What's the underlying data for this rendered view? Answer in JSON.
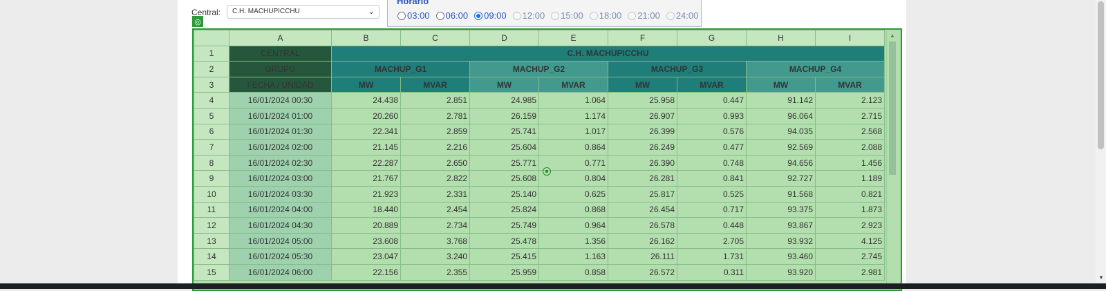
{
  "form": {
    "central_label": "Central:",
    "central_value": "C.H. MACHUPICCHU",
    "horario_legend": "Horario",
    "hours": [
      {
        "label": "03:00",
        "checked": false,
        "disabled": false
      },
      {
        "label": "06:00",
        "checked": false,
        "disabled": false
      },
      {
        "label": "09:00",
        "checked": true,
        "disabled": false
      },
      {
        "label": "12:00",
        "checked": false,
        "disabled": true
      },
      {
        "label": "15:00",
        "checked": false,
        "disabled": true
      },
      {
        "label": "18:00",
        "checked": false,
        "disabled": true
      },
      {
        "label": "21:00",
        "checked": false,
        "disabled": true
      },
      {
        "label": "24:00",
        "checked": false,
        "disabled": true
      }
    ]
  },
  "sheet": {
    "columns": [
      "A",
      "B",
      "C",
      "D",
      "E",
      "F",
      "G",
      "H",
      "I"
    ],
    "central_label": "CENTRAL",
    "central_name": "C.H. MACHUPICCHU",
    "grupo_label": "GRUPO",
    "groups": [
      "MACHUP_G1",
      "MACHUP_G2",
      "MACHUP_G3",
      "MACHUP_G4"
    ],
    "fecha_label": "FECHA / UNIDAD",
    "units": [
      "MW",
      "MVAR",
      "MW",
      "MVAR",
      "MW",
      "MVAR",
      "MW",
      "MVAR"
    ],
    "rows": [
      {
        "n": "4",
        "date": "16/01/2024 00:30",
        "vals": [
          "24.438",
          "2.851",
          "24.985",
          "1.064",
          "25.958",
          "0.447",
          "91.142",
          "2.123"
        ]
      },
      {
        "n": "5",
        "date": "16/01/2024 01:00",
        "vals": [
          "20.260",
          "2.781",
          "26.159",
          "1.174",
          "26.907",
          "0.993",
          "96.064",
          "2.715"
        ]
      },
      {
        "n": "6",
        "date": "16/01/2024 01:30",
        "vals": [
          "22.341",
          "2.859",
          "25.741",
          "1.017",
          "26.399",
          "0.576",
          "94.035",
          "2.568"
        ]
      },
      {
        "n": "7",
        "date": "16/01/2024 02:00",
        "vals": [
          "21.145",
          "2.216",
          "25.604",
          "0.864",
          "26.249",
          "0.477",
          "92.569",
          "2.088"
        ]
      },
      {
        "n": "8",
        "date": "16/01/2024 02:30",
        "vals": [
          "22.287",
          "2.650",
          "25.771",
          "0.771",
          "26.390",
          "0.748",
          "94.656",
          "1.456"
        ]
      },
      {
        "n": "9",
        "date": "16/01/2024 03:00",
        "vals": [
          "21.767",
          "2.822",
          "25.608",
          "0.804",
          "26.281",
          "0.841",
          "92.727",
          "1.189"
        ]
      },
      {
        "n": "10",
        "date": "16/01/2024 03:30",
        "vals": [
          "21.923",
          "2.331",
          "25.140",
          "0.625",
          "25.817",
          "0.525",
          "91.568",
          "0.821"
        ]
      },
      {
        "n": "11",
        "date": "16/01/2024 04:00",
        "vals": [
          "18.440",
          "2.454",
          "25.824",
          "0.868",
          "26.454",
          "0.717",
          "93.375",
          "1.873"
        ]
      },
      {
        "n": "12",
        "date": "16/01/2024 04:30",
        "vals": [
          "20.889",
          "2.734",
          "25.749",
          "0.964",
          "26.578",
          "0.448",
          "93.867",
          "2.923"
        ]
      },
      {
        "n": "13",
        "date": "16/01/2024 05:00",
        "vals": [
          "23.608",
          "3.768",
          "25.478",
          "1.356",
          "26.162",
          "2.705",
          "93.932",
          "4.125"
        ]
      },
      {
        "n": "14",
        "date": "16/01/2024 05:30",
        "vals": [
          "23.047",
          "3.240",
          "25.415",
          "1.163",
          "26.111",
          "1.731",
          "93.460",
          "2.745"
        ]
      },
      {
        "n": "15",
        "date": "16/01/2024 06:00",
        "vals": [
          "22.156",
          "2.355",
          "25.959",
          "0.858",
          "26.572",
          "0.311",
          "93.920",
          "2.981"
        ]
      }
    ]
  }
}
